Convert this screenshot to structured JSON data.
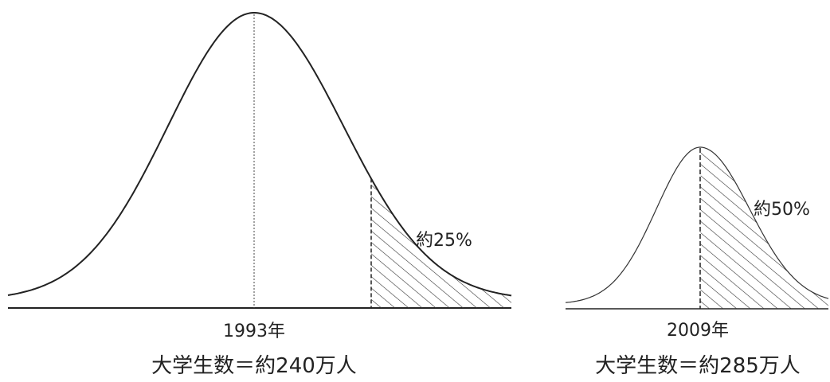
{
  "diagram": {
    "left": {
      "year_label": "1993年",
      "caption": "大学生数＝約240万人",
      "shaded_label": "約25%",
      "shaded_fraction": 0.25
    },
    "right": {
      "year_label": "2009年",
      "caption": "大学生数＝約285万人",
      "shaded_label": "約50%",
      "shaded_fraction": 0.5
    },
    "colors": {
      "curve": "#222222",
      "hatch": "#333333",
      "background": "#ffffff"
    }
  }
}
